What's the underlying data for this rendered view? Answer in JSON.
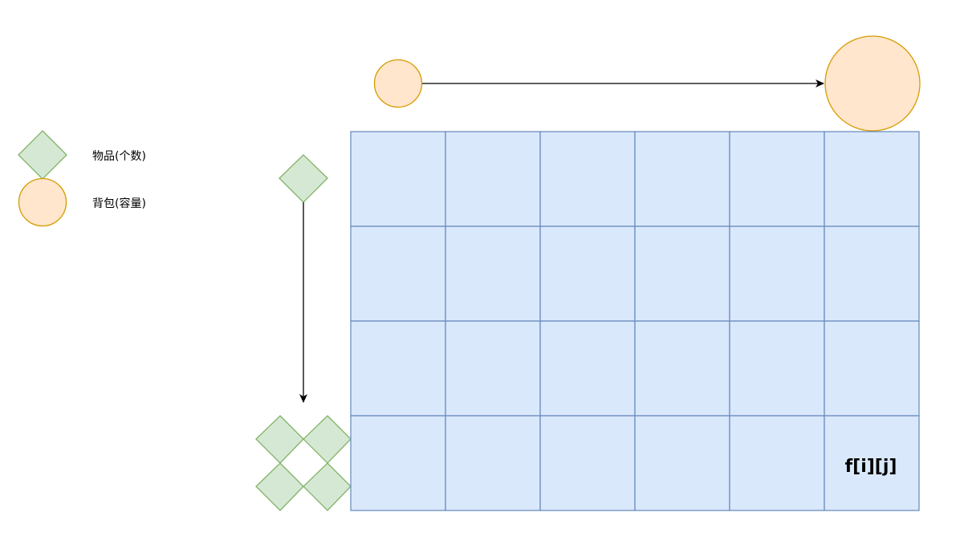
{
  "legend": {
    "items": [
      {
        "shape": "diamond",
        "label": "物品(个数)"
      },
      {
        "shape": "circle",
        "label": "背包(容量)"
      }
    ]
  },
  "grid": {
    "rows": 4,
    "cols": 6,
    "highlight_cell_label": "f[i][j]"
  },
  "colors": {
    "item_fill": "#d5e8d4",
    "item_stroke": "#82b366",
    "bag_fill": "#ffe6cc",
    "bag_stroke": "#d79b00",
    "grid_fill": "#dae8fc",
    "grid_stroke": "#6c8ebf",
    "arrow": "#000000"
  }
}
